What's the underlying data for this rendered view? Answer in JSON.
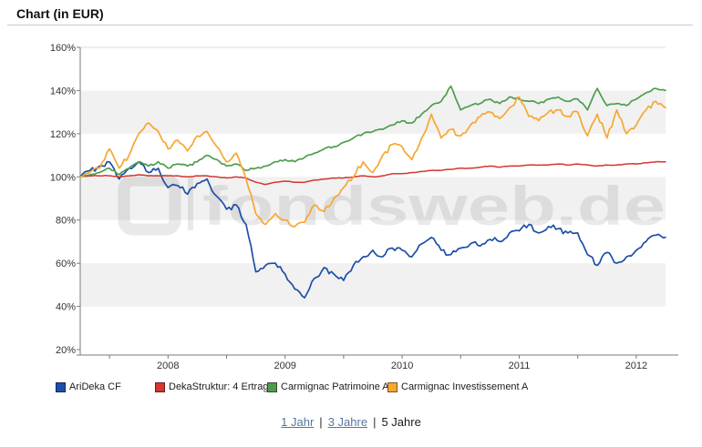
{
  "header": {
    "title": "Chart (in EUR)"
  },
  "watermark": {
    "text": "fondsweb.de"
  },
  "chart_data": {
    "type": "line",
    "title": "Chart (in EUR)",
    "x_start": "2007-04",
    "x_end": "2012-04",
    "x_interval": "monthly",
    "x_tick_labels": [
      "2008",
      "2009",
      "2010",
      "2011",
      "2012"
    ],
    "y_tick_labels": [
      "160%",
      "140%",
      "120%",
      "100%",
      "80%",
      "60%",
      "40%",
      "20%"
    ],
    "ylim": [
      20,
      160
    ],
    "y_grid_step": 20,
    "grid": "alternating-gray-bands",
    "legend_position": "bottom",
    "series": [
      {
        "name": "AriDeka CF",
        "color": "#1d4fa8",
        "values": [
          100,
          103,
          105,
          107,
          99,
          104,
          107,
          102,
          104,
          95,
          96,
          92,
          97,
          99,
          91,
          85,
          87,
          78,
          56,
          59,
          60,
          55,
          48,
          44,
          53,
          58,
          55,
          52,
          59,
          63,
          66,
          63,
          67,
          66,
          63,
          69,
          72,
          66,
          64,
          67,
          69,
          68,
          71,
          70,
          74,
          75,
          78,
          74,
          77,
          76,
          74,
          74,
          64,
          59,
          65,
          60,
          63,
          66,
          70,
          73,
          72
        ]
      },
      {
        "name": "DekaStruktur: 4 Ertrag",
        "color": "#d5352f",
        "values": [
          100,
          100.5,
          100.5,
          100.5,
          100,
          100.5,
          101,
          100.5,
          100.5,
          100.5,
          100.5,
          100,
          100.5,
          100.5,
          100,
          99.5,
          100,
          99.5,
          97.5,
          96.5,
          97.5,
          98,
          97.5,
          97.5,
          98.5,
          99,
          99.5,
          99.5,
          100,
          100.5,
          100,
          100.5,
          101.5,
          101.5,
          102,
          102.5,
          103,
          103,
          103.5,
          104,
          104,
          104.5,
          105,
          104.5,
          105,
          105,
          105.5,
          105.5,
          105.5,
          106,
          105.5,
          106,
          105.5,
          105,
          105.5,
          105.5,
          106,
          106,
          106.5,
          107,
          107
        ]
      },
      {
        "name": "Carmignac Patrimoine A",
        "color": "#4e9d4e",
        "values": [
          100,
          101,
          102,
          104,
          101,
          104,
          107,
          105,
          107,
          104,
          106,
          105,
          107,
          110,
          108,
          105,
          106,
          103,
          104,
          105,
          107,
          108,
          107,
          109,
          111,
          113,
          114,
          116,
          118,
          120,
          121,
          122,
          124,
          126,
          125,
          129,
          133,
          135,
          142,
          131,
          133,
          134,
          136,
          134,
          137,
          136,
          135,
          134,
          136,
          137,
          135,
          136,
          131,
          141,
          133,
          134,
          133,
          136,
          139,
          141,
          140
        ]
      },
      {
        "name": "Carmignac Investissement A",
        "color": "#f6a730",
        "values": [
          100,
          102,
          104,
          113,
          104,
          110,
          120,
          125,
          121,
          113,
          117,
          112,
          119,
          121,
          114,
          107,
          111,
          99,
          83,
          78,
          83,
          80,
          77,
          79,
          87,
          84,
          90,
          95,
          100,
          107,
          102,
          110,
          115,
          114,
          108,
          118,
          129,
          118,
          122,
          119,
          124,
          128,
          130,
          127,
          132,
          137,
          128,
          126,
          130,
          131,
          128,
          130,
          119,
          129,
          118,
          131,
          120,
          124,
          131,
          135,
          132
        ]
      }
    ]
  },
  "footer": {
    "separator": "|",
    "periods": [
      {
        "label": "1 Jahr"
      },
      {
        "label": "3 Jahre"
      },
      {
        "label": "5 Jahre"
      }
    ]
  }
}
